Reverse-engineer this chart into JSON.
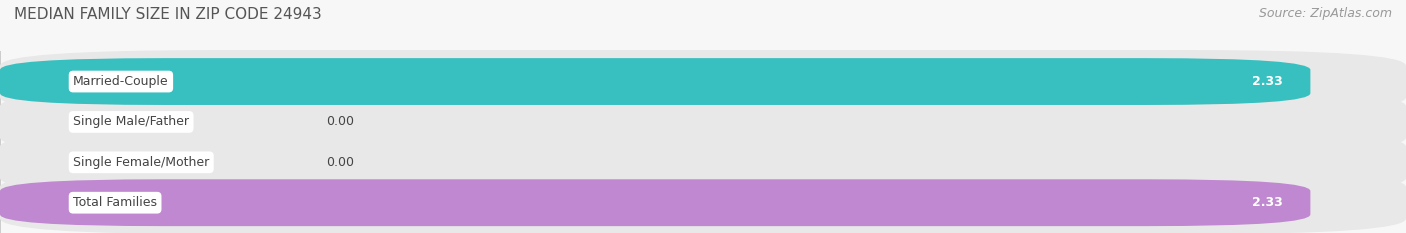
{
  "title": "MEDIAN FAMILY SIZE IN ZIP CODE 24943",
  "source": "Source: ZipAtlas.com",
  "categories": [
    "Married-Couple",
    "Single Male/Father",
    "Single Female/Mother",
    "Total Families"
  ],
  "values": [
    2.33,
    0.0,
    0.0,
    2.33
  ],
  "bar_colors": [
    "#38c0c0",
    "#aac4f0",
    "#f5a0b8",
    "#c088d0"
  ],
  "xlim": [
    0,
    2.5
  ],
  "xticks": [
    0.0,
    1.25,
    2.5
  ],
  "bar_height": 0.58,
  "track_color": "#e8e8e8",
  "background_color": "#f7f7f7",
  "value_label_color": "#ffffff",
  "category_label_color": "#444444",
  "title_color": "#555555",
  "source_color": "#999999",
  "title_fontsize": 11,
  "source_fontsize": 9,
  "tick_fontsize": 9,
  "bar_label_fontsize": 9,
  "value_fontsize": 9
}
